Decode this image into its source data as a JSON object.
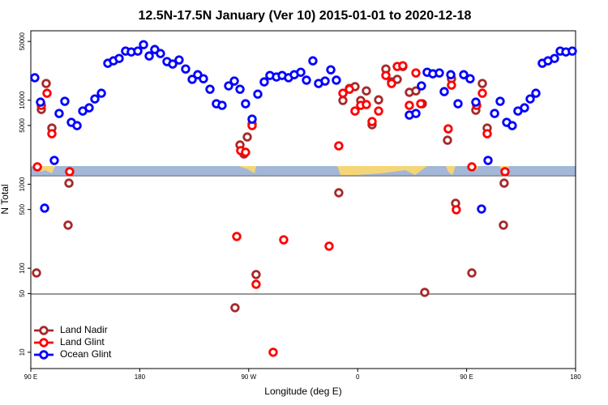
{
  "chart_data": {
    "type": "scatter",
    "title": "12.5N-17.5N January (Ver 10)   2015-01-01 to 2020-12-18",
    "x_label": "Longitude (deg E)",
    "y_label": "N Total",
    "ylog": true,
    "legend": "bottom-left",
    "xlim": [
      90,
      540
    ],
    "xticks": [
      {
        "value": 90,
        "label": "90 E"
      },
      180,
      {
        "value": 270,
        "label": "90 W"
      },
      {
        "value": 360,
        "label": "0"
      },
      {
        "value": 450,
        "label": "90 E"
      },
      {
        "value": 540,
        "label": "180"
      }
    ],
    "ylim": [
      6.4,
      67000
    ],
    "yticks": [
      10,
      50,
      100,
      500,
      1000,
      5000,
      10000,
      50000
    ],
    "series": [
      {
        "name": "Land Nadir",
        "color": "#a52a2a",
        "x": [
          94.7,
          98.7,
          102.7,
          107.4,
          120.8,
          121.5,
          262.8,
          266.1,
          268.8,
          272.8,
          276.1,
          258.7,
          344.4,
          347.8,
          353.2,
          357.8,
          362.5,
          367.2,
          371.9,
          377.3,
          383.3,
          388,
          392.7,
          397.3,
          402.7,
          408.1,
          413.4,
          415.4,
          434.2,
          437.5,
          440.9,
          454.3,
          457.6,
          463,
          467,
          480.4,
          481
        ],
        "values": [
          87.9,
          7760,
          15800,
          4660,
          326,
          1030,
          2930,
          2290,
          3650,
          5210,
          84.1,
          33.9,
          791,
          9910,
          13800,
          14500,
          9910,
          12900,
          5100,
          10100,
          23500,
          16500,
          17700,
          25200,
          12400,
          12900,
          9070,
          51.6,
          3340,
          18000,
          593,
          87.9,
          7600,
          15800,
          4660,
          326,
          1030
        ]
      },
      {
        "name": "Land Glint",
        "color": "#ff0000",
        "x": [
          95.4,
          98.7,
          103.4,
          107.4,
          122.1,
          260.1,
          263.4,
          267.4,
          272.8,
          276.1,
          290.2,
          298.9,
          336.4,
          344.4,
          347.8,
          353.2,
          357.8,
          362.5,
          367.2,
          371.9,
          377.3,
          383.3,
          388,
          392.7,
          397.3,
          402.7,
          408.1,
          412.1,
          434.8,
          437.5,
          441.5,
          454.3,
          458.3,
          463,
          467,
          481.7
        ],
        "values": [
          1610,
          8680,
          12100,
          3990,
          1410,
          239,
          2510,
          2400,
          4980,
          64.4,
          10,
          218,
          183,
          2860,
          12100,
          13500,
          7430,
          8680,
          8870,
          5570,
          7430,
          19700,
          15800,
          25200,
          25700,
          8680,
          21100,
          9070,
          4560,
          15100,
          497,
          1610,
          8680,
          12100,
          3990,
          1410
        ]
      },
      {
        "name": "Ocean Glint",
        "color": "#0000ff",
        "x": [
          93.3,
          98,
          101.4,
          109.4,
          113.4,
          118.1,
          123.5,
          128.2,
          132.9,
          138.2,
          142.9,
          148.3,
          153.6,
          158.3,
          163,
          168.3,
          173,
          178.4,
          183.1,
          187.8,
          192.4,
          197.1,
          202.5,
          207.2,
          212.5,
          217.9,
          223.3,
          227.9,
          232.6,
          238,
          243.3,
          248,
          253.4,
          258.1,
          262.8,
          267.4,
          272.8,
          277.5,
          282.8,
          287.5,
          292.9,
          297.6,
          302.9,
          307.6,
          313,
          317.7,
          323,
          327.7,
          333.1,
          337.8,
          342.4,
          402.7,
          408.1,
          412.7,
          417.4,
          422.1,
          427.5,
          431.5,
          436.9,
          442.9,
          447.6,
          452.9,
          457.6,
          462.3,
          467.7,
          473.1,
          477.7,
          483.1,
          487.7,
          492.4,
          497.8,
          502.5,
          507.2,
          512.5,
          517.2,
          522.6,
          527.3,
          532,
          537.3
        ],
        "values": [
          18500,
          9480,
          519,
          1920,
          6950,
          9700,
          5450,
          4980,
          7430,
          8110,
          10350,
          12100,
          27500,
          29400,
          31400,
          38400,
          37500,
          38400,
          45800,
          33600,
          40100,
          35900,
          28800,
          26900,
          30100,
          23500,
          17700,
          20100,
          18000,
          13500,
          9070,
          8680,
          14800,
          16900,
          13500,
          9070,
          5950,
          11800,
          16500,
          19700,
          18900,
          19700,
          18500,
          20100,
          21500,
          17300,
          29400,
          15800,
          16900,
          23000,
          17300,
          6650,
          6950,
          14800,
          21500,
          20600,
          21100,
          12650,
          20100,
          9070,
          20100,
          18000,
          9480,
          507,
          1920,
          6950,
          9700,
          5450,
          4980,
          7430,
          8110,
          10350,
          12100,
          27500,
          29400,
          31400,
          38400,
          37500,
          38400
        ]
      }
    ]
  }
}
